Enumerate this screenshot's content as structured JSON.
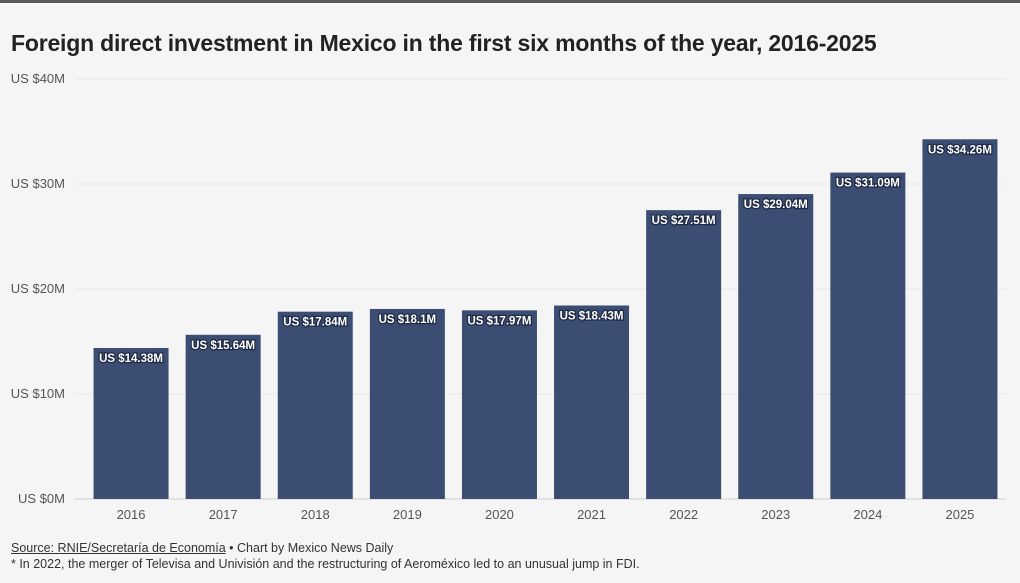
{
  "title": "Foreign direct investment in Mexico in the first six months of the year, 2016-2025",
  "chart_data": {
    "type": "bar",
    "title": "Foreign direct investment in Mexico in the first six months of the year, 2016-2025",
    "xlabel": "",
    "ylabel": "",
    "categories": [
      "2016",
      "2017",
      "2018",
      "2019",
      "2020",
      "2021",
      "2022",
      "2023",
      "2024",
      "2025"
    ],
    "values": [
      14.38,
      15.64,
      17.84,
      18.1,
      17.97,
      18.43,
      27.51,
      29.04,
      31.09,
      34.26
    ],
    "data_labels": [
      "US $14.38M",
      "US $15.64M",
      "US $17.84M",
      "US $18.1M",
      "US $17.97M",
      "US $18.43M",
      "US $27.51M",
      "US $29.04M",
      "US $31.09M",
      "US $34.26M"
    ],
    "ylim": [
      0,
      40
    ],
    "yticks": [
      0,
      10,
      20,
      30,
      40
    ],
    "ytick_labels": [
      "US $0M",
      "US $10M",
      "US $20M",
      "US $30M",
      "US $40M"
    ],
    "grid": true,
    "bar_color": "#3b4d72"
  },
  "footer": {
    "source_link": "Source: RNIE/Secretaría de Economía",
    "credit": " • Chart by Mexico News Daily",
    "note": "* In 2022, the merger of Televisa and Univisión and the restructuring of Aeroméxico led to an unusual jump in FDI."
  }
}
